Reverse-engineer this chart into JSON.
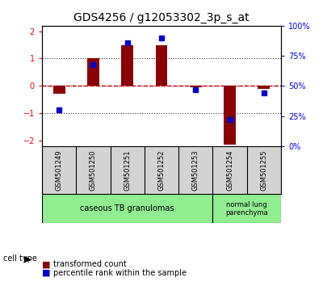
{
  "title": "GDS4256 / g12053302_3p_s_at",
  "samples": [
    "GSM501249",
    "GSM501250",
    "GSM501251",
    "GSM501252",
    "GSM501253",
    "GSM501254",
    "GSM501255"
  ],
  "transformed_count": [
    -0.28,
    1.02,
    1.5,
    1.48,
    -0.05,
    -2.15,
    -0.12
  ],
  "percentile_rank": [
    30,
    68,
    86,
    90,
    47,
    22,
    44
  ],
  "ylim_left": [
    -2.2,
    2.2
  ],
  "yticks_left": [
    -2,
    -1,
    0,
    1,
    2
  ],
  "yticks_right": [
    0,
    25,
    50,
    75,
    100
  ],
  "yright_labels": [
    "0%",
    "25%",
    "50%",
    "75%",
    "100%"
  ],
  "bar_color": "#8B0000",
  "dot_color": "#0000CC",
  "hline_color": "#CC0000",
  "dotline_color": "#333333",
  "cell_group1_label": "caseous TB granulomas",
  "cell_group2_label": "normal lung\nparenchyma",
  "cell_color": "#90EE90",
  "legend_bar_label": "transformed count",
  "legend_dot_label": "percentile rank within the sample",
  "title_fontsize": 10,
  "tick_fontsize": 7,
  "label_fontsize": 6,
  "cell_fontsize": 7,
  "legend_fontsize": 7
}
